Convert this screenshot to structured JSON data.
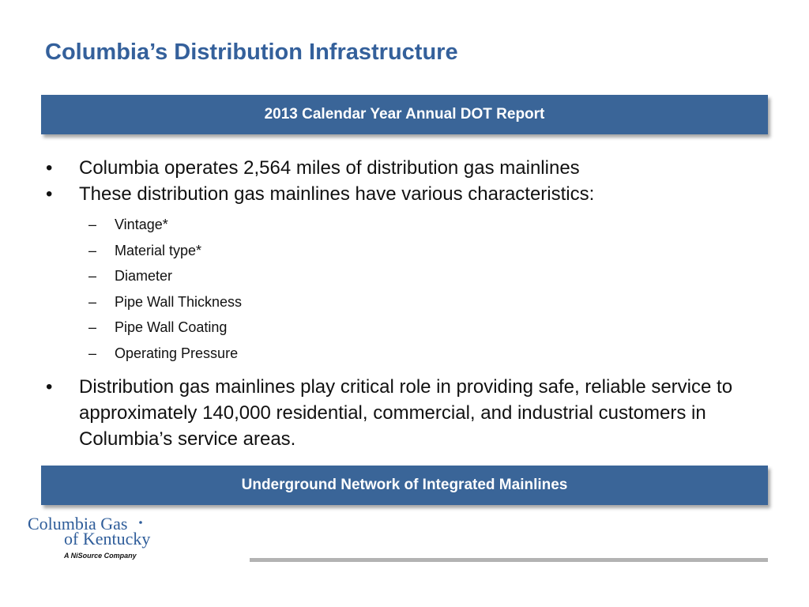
{
  "title": "Columbia’s Distribution Infrastructure",
  "banner_top": "2013 Calendar Year Annual DOT Report",
  "bullets": {
    "b1": "Columbia operates 2,564 miles of distribution gas mainlines",
    "b2": "These distribution gas mainlines have various characteristics:",
    "sub": [
      "Vintage*",
      "Material type*",
      "Diameter",
      "Pipe Wall Thickness",
      "Pipe Wall Coating",
      "Operating Pressure"
    ],
    "b3": "Distribution gas mainlines play critical role in providing safe,  reliable service to approximately 140,000 residential, commercial, and industrial customers in Columbia’s service areas."
  },
  "bullet_mark": "•",
  "sub_mark": "–",
  "banner_bottom": "Underground Network of Integrated Mainlines",
  "logo": {
    "line1": "Columbia Gas",
    "line2": "of Kentucky",
    "tagline": "A NiSource Company"
  },
  "colors": {
    "title": "#34609b",
    "banner": "#3a6598",
    "logo": "#2f5d9a"
  }
}
